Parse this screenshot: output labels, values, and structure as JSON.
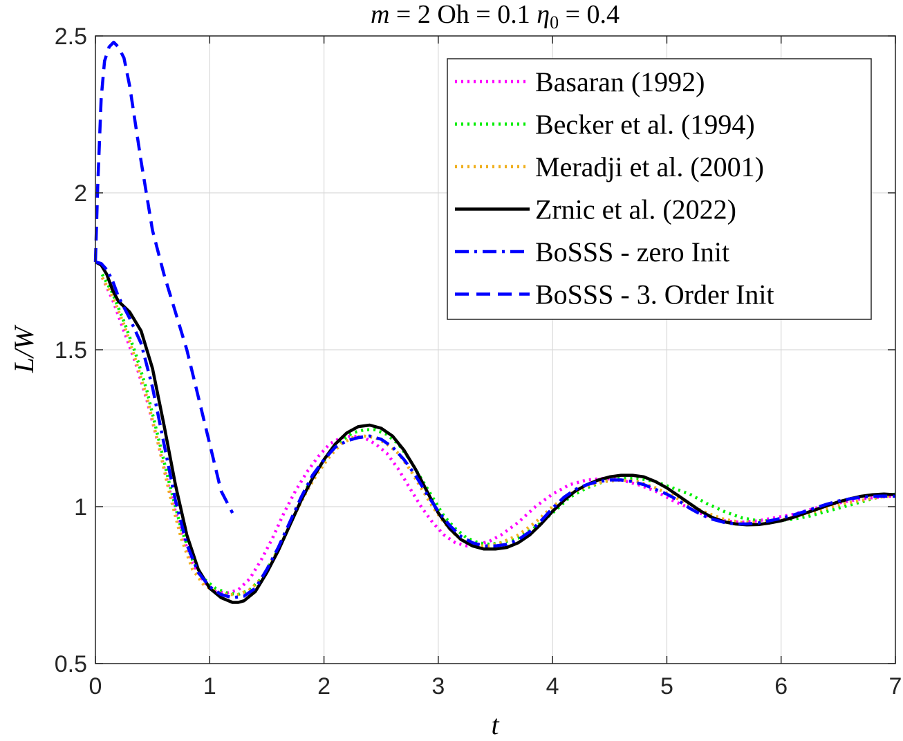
{
  "chart_data": {
    "type": "line",
    "title": {
      "m": "m",
      "m_val": " = 2 Oh = 0.1 ",
      "eta": "η",
      "eta_sub": "0",
      "eta_val": " = 0.4"
    },
    "xlabel": "t",
    "ylabel": "L/W",
    "xlim": [
      0,
      7
    ],
    "ylim": [
      0.5,
      2.5
    ],
    "xticks": [
      "0",
      "1",
      "2",
      "3",
      "4",
      "5",
      "6",
      "7"
    ],
    "yticks": [
      "0.5",
      "1",
      "1.5",
      "2",
      "2.5"
    ],
    "grid": true,
    "legend_position": "top-right",
    "series": [
      {
        "name": "Basaran (1992)",
        "color": "#ff00ff",
        "style": "dotted",
        "x": [
          0.06,
          0.15,
          0.25,
          0.35,
          0.45,
          0.55,
          0.65,
          0.75,
          0.85,
          0.95,
          1.05,
          1.15,
          1.25,
          1.35,
          1.45,
          1.55,
          1.65,
          1.75,
          1.85,
          1.95,
          2.05,
          2.15,
          2.25,
          2.35,
          2.45,
          2.55,
          2.65,
          2.75,
          2.85,
          2.95,
          3.05,
          3.15,
          3.25,
          3.35,
          3.45,
          3.55,
          3.7,
          3.85,
          4.0,
          4.15,
          4.3,
          4.45,
          4.6,
          4.75,
          4.9,
          5.05,
          5.2,
          5.35,
          5.5,
          5.65,
          5.8,
          5.95,
          6.1,
          6.25,
          6.4,
          6.55,
          6.7,
          6.85,
          7.0
        ],
        "y": [
          1.73,
          1.66,
          1.56,
          1.46,
          1.34,
          1.2,
          1.05,
          0.92,
          0.82,
          0.76,
          0.73,
          0.725,
          0.735,
          0.77,
          0.83,
          0.9,
          0.98,
          1.05,
          1.11,
          1.16,
          1.2,
          1.22,
          1.225,
          1.22,
          1.2,
          1.17,
          1.12,
          1.06,
          1.0,
          0.95,
          0.91,
          0.885,
          0.875,
          0.88,
          0.89,
          0.91,
          0.95,
          1.0,
          1.04,
          1.07,
          1.085,
          1.09,
          1.085,
          1.07,
          1.05,
          1.02,
          0.995,
          0.97,
          0.955,
          0.95,
          0.955,
          0.965,
          0.975,
          0.99,
          1.005,
          1.015,
          1.025,
          1.03,
          1.035
        ]
      },
      {
        "name": "Becker et al. (1994)",
        "color": "#00ee00",
        "style": "dotted",
        "x": [
          0.06,
          0.15,
          0.25,
          0.35,
          0.45,
          0.55,
          0.65,
          0.75,
          0.85,
          0.95,
          1.05,
          1.15,
          1.25,
          1.35,
          1.45,
          1.55,
          1.65,
          1.75,
          1.85,
          1.95,
          2.05,
          2.15,
          2.25,
          2.35,
          2.45,
          2.55,
          2.65,
          2.75,
          2.85,
          2.95,
          3.05,
          3.15,
          3.25,
          3.35,
          3.45,
          3.55,
          3.7,
          3.85,
          4.0,
          4.15,
          4.3,
          4.45,
          4.6,
          4.75,
          4.9,
          5.05,
          5.2,
          5.35,
          5.5,
          5.65,
          5.8,
          5.95,
          6.1,
          6.25,
          6.4,
          6.55,
          6.7,
          6.85,
          7.0
        ],
        "y": [
          1.74,
          1.68,
          1.59,
          1.49,
          1.37,
          1.22,
          1.07,
          0.93,
          0.83,
          0.77,
          0.74,
          0.725,
          0.72,
          0.735,
          0.77,
          0.83,
          0.9,
          0.98,
          1.06,
          1.12,
          1.17,
          1.21,
          1.235,
          1.245,
          1.245,
          1.23,
          1.2,
          1.15,
          1.09,
          1.03,
          0.97,
          0.93,
          0.9,
          0.885,
          0.88,
          0.885,
          0.9,
          0.935,
          0.98,
          1.03,
          1.06,
          1.08,
          1.09,
          1.09,
          1.08,
          1.06,
          1.04,
          1.01,
          0.985,
          0.965,
          0.955,
          0.955,
          0.96,
          0.97,
          0.985,
          1.0,
          1.015,
          1.03,
          1.04
        ]
      },
      {
        "name": "Meradji et al. (2001)",
        "color": "#f0b020",
        "style": "dotted",
        "x": [
          0.06,
          0.15,
          0.25,
          0.35,
          0.45,
          0.55,
          0.65,
          0.75,
          0.85,
          0.95,
          1.05,
          1.15,
          1.25,
          1.35,
          1.45,
          1.55,
          1.65,
          1.75,
          1.85,
          1.95,
          2.05,
          2.15,
          2.25,
          2.35,
          2.45,
          2.55,
          2.65,
          2.75,
          2.85,
          2.95,
          3.05,
          3.15,
          3.25,
          3.35,
          3.45,
          3.55,
          3.7,
          3.85,
          4.0,
          4.15,
          4.3,
          4.45,
          4.6,
          4.75,
          4.9,
          5.05,
          5.2,
          5.35,
          5.5,
          5.65,
          5.8,
          5.95,
          6.1,
          6.25,
          6.4,
          6.55,
          6.7,
          6.85,
          7.0
        ],
        "y": [
          1.73,
          1.67,
          1.58,
          1.47,
          1.35,
          1.2,
          1.04,
          0.9,
          0.8,
          0.75,
          0.73,
          0.72,
          0.72,
          0.735,
          0.77,
          0.83,
          0.9,
          0.98,
          1.05,
          1.11,
          1.16,
          1.2,
          1.22,
          1.225,
          1.22,
          1.2,
          1.17,
          1.12,
          1.06,
          1.0,
          0.95,
          0.91,
          0.885,
          0.875,
          0.875,
          0.885,
          0.91,
          0.95,
          1.0,
          1.04,
          1.065,
          1.08,
          1.085,
          1.08,
          1.06,
          1.035,
          1.005,
          0.98,
          0.96,
          0.95,
          0.95,
          0.955,
          0.965,
          0.98,
          0.995,
          1.01,
          1.02,
          1.03,
          1.035
        ]
      },
      {
        "name": "Zrnic et al. (2022)",
        "color": "#000000",
        "style": "solid",
        "x": [
          0,
          0.05,
          0.1,
          0.15,
          0.2,
          0.3,
          0.4,
          0.5,
          0.6,
          0.7,
          0.8,
          0.9,
          1.0,
          1.1,
          1.2,
          1.25,
          1.3,
          1.4,
          1.5,
          1.6,
          1.7,
          1.8,
          1.9,
          2.0,
          2.1,
          2.2,
          2.3,
          2.4,
          2.5,
          2.6,
          2.7,
          2.8,
          2.9,
          3.0,
          3.1,
          3.2,
          3.3,
          3.4,
          3.5,
          3.6,
          3.7,
          3.8,
          3.9,
          4.0,
          4.1,
          4.2,
          4.3,
          4.4,
          4.5,
          4.6,
          4.7,
          4.8,
          4.9,
          5.0,
          5.1,
          5.2,
          5.3,
          5.4,
          5.5,
          5.6,
          5.7,
          5.8,
          5.9,
          6.0,
          6.1,
          6.2,
          6.3,
          6.4,
          6.5,
          6.6,
          6.7,
          6.8,
          6.9,
          7.0
        ],
        "y": [
          1.78,
          1.77,
          1.74,
          1.69,
          1.655,
          1.62,
          1.56,
          1.44,
          1.26,
          1.07,
          0.91,
          0.8,
          0.74,
          0.71,
          0.695,
          0.695,
          0.7,
          0.73,
          0.79,
          0.86,
          0.94,
          1.02,
          1.09,
          1.15,
          1.2,
          1.235,
          1.255,
          1.26,
          1.25,
          1.225,
          1.18,
          1.12,
          1.05,
          0.98,
          0.93,
          0.895,
          0.875,
          0.865,
          0.865,
          0.87,
          0.885,
          0.91,
          0.945,
          0.985,
          1.02,
          1.05,
          1.07,
          1.085,
          1.095,
          1.1,
          1.1,
          1.095,
          1.08,
          1.06,
          1.035,
          1.01,
          0.985,
          0.965,
          0.952,
          0.945,
          0.942,
          0.943,
          0.948,
          0.955,
          0.965,
          0.978,
          0.99,
          1.003,
          1.015,
          1.025,
          1.033,
          1.038,
          1.04,
          1.038
        ]
      },
      {
        "name": "BoSSS - zero Init",
        "color": "#0000ff",
        "style": "dashdot",
        "x": [
          0,
          0.05,
          0.1,
          0.15,
          0.2,
          0.3,
          0.4,
          0.5,
          0.6,
          0.7,
          0.8,
          0.9,
          1.0,
          1.1,
          1.2,
          1.3,
          1.4,
          1.5,
          1.6,
          1.7,
          1.8,
          1.9,
          2.0,
          2.1,
          2.2,
          2.3,
          2.4,
          2.5,
          2.6,
          2.7,
          2.8,
          2.9,
          3.0,
          3.1,
          3.2,
          3.3,
          3.4,
          3.5,
          3.6,
          3.7,
          3.8,
          3.9,
          4.0,
          4.1,
          4.2,
          4.3,
          4.4,
          4.5,
          4.6,
          4.7,
          4.8,
          4.9,
          5.0,
          5.1,
          5.2,
          5.3,
          5.4,
          5.5,
          5.6,
          5.7,
          5.8,
          5.9,
          6.0,
          6.1,
          6.2,
          6.3,
          6.4,
          6.5,
          6.6,
          6.7,
          6.8,
          6.9,
          7.0
        ],
        "y": [
          1.78,
          1.775,
          1.755,
          1.72,
          1.67,
          1.6,
          1.52,
          1.38,
          1.2,
          1.02,
          0.88,
          0.79,
          0.745,
          0.72,
          0.71,
          0.715,
          0.74,
          0.8,
          0.87,
          0.95,
          1.03,
          1.1,
          1.15,
          1.19,
          1.21,
          1.22,
          1.225,
          1.215,
          1.19,
          1.15,
          1.1,
          1.04,
          0.985,
          0.94,
          0.905,
          0.885,
          0.875,
          0.875,
          0.88,
          0.895,
          0.92,
          0.955,
          0.995,
          1.03,
          1.055,
          1.07,
          1.08,
          1.085,
          1.085,
          1.08,
          1.07,
          1.055,
          1.04,
          1.02,
          0.995,
          0.975,
          0.96,
          0.95,
          0.945,
          0.945,
          0.948,
          0.955,
          0.963,
          0.973,
          0.984,
          0.996,
          1.008,
          1.018,
          1.025,
          1.03,
          1.033,
          1.034,
          1.033
        ]
      },
      {
        "name": "BoSSS - 3. Order Init",
        "color": "#0000ff",
        "style": "dashed",
        "x": [
          0,
          0.02,
          0.05,
          0.08,
          0.12,
          0.16,
          0.2,
          0.25,
          0.3,
          0.4,
          0.5,
          0.6,
          0.7,
          0.8,
          0.9,
          1.0,
          1.1,
          1.2
        ],
        "y": [
          1.78,
          2.02,
          2.3,
          2.42,
          2.465,
          2.48,
          2.465,
          2.43,
          2.34,
          2.1,
          1.88,
          1.74,
          1.62,
          1.5,
          1.35,
          1.2,
          1.05,
          0.98
        ]
      }
    ]
  }
}
